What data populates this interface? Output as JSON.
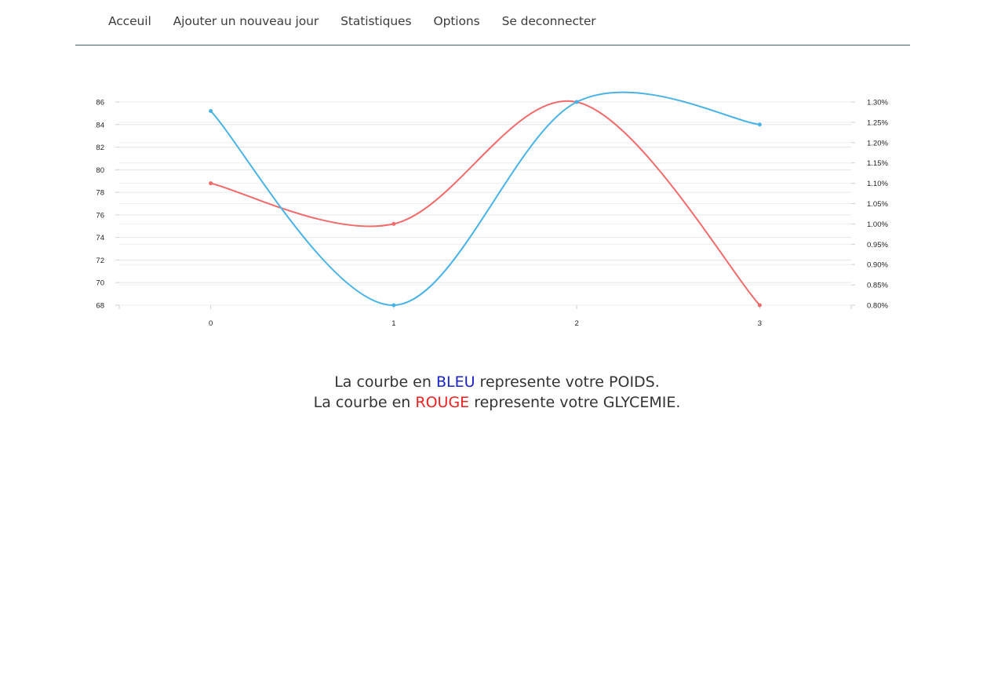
{
  "nav": {
    "items": [
      {
        "label": "Acceuil",
        "name": "nav-link-acceuil"
      },
      {
        "label": "Ajouter un nouveau jour",
        "name": "nav-link-ajouter"
      },
      {
        "label": "Statistiques",
        "name": "nav-link-statistiques"
      },
      {
        "label": "Options",
        "name": "nav-link-options"
      },
      {
        "label": "Se deconnecter",
        "name": "nav-link-deconnecter"
      }
    ]
  },
  "chart_data": {
    "type": "line",
    "x": [
      0,
      1,
      2,
      3
    ],
    "x_ticks": [
      "0",
      "1",
      "2",
      "3"
    ],
    "y_left": {
      "range": [
        68,
        86
      ],
      "ticks": [
        "68",
        "70",
        "72",
        "74",
        "76",
        "78",
        "80",
        "82",
        "84",
        "86"
      ]
    },
    "y_right": {
      "range": [
        0.8,
        1.3
      ],
      "ticks": [
        "0.80%",
        "0.85%",
        "0.90%",
        "0.95%",
        "1.00%",
        "1.05%",
        "1.10%",
        "1.15%",
        "1.20%",
        "1.25%",
        "1.30%"
      ]
    },
    "series": [
      {
        "axis": "left",
        "color": "#4ab3e6",
        "values": [
          85.2,
          68.0,
          86.0,
          84.0
        ]
      },
      {
        "axis": "right",
        "color": "#f26b6b",
        "values": [
          1.1,
          1.0,
          1.3,
          0.8
        ]
      }
    ],
    "grid": true
  },
  "legend": {
    "line1_prefix": "La courbe en ",
    "line1_color_word": "BLEU",
    "line1_suffix": " represente votre POIDS.",
    "line2_prefix": "La courbe en ",
    "line2_color_word": "ROUGE",
    "line2_suffix": " represente votre GLYCEMIE.",
    "blue": "#1a23c9",
    "red": "#ee2222"
  }
}
